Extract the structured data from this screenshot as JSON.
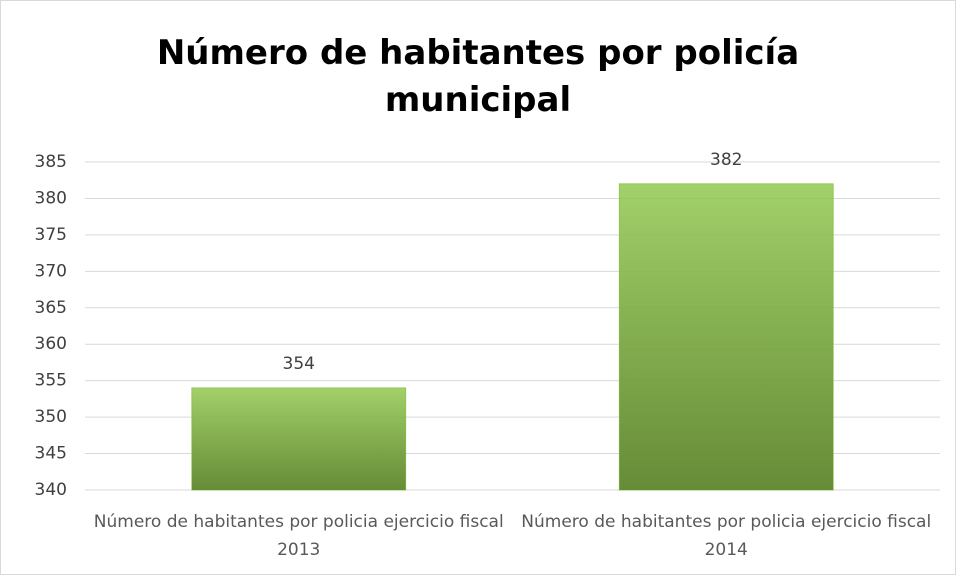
{
  "chart_data": {
    "type": "bar",
    "title": "Número de habitantes por policía municipal",
    "categories": [
      "Número de habitantes por policia ejercicio fiscal 2013",
      "Número de habitantes por policia ejercicio fiscal 2014"
    ],
    "values": [
      354,
      382
    ],
    "color": "#92c850",
    "ylim": [
      340,
      385
    ],
    "yticks": [
      340,
      345,
      350,
      355,
      360,
      365,
      370,
      375,
      380,
      385
    ],
    "grid": true
  }
}
